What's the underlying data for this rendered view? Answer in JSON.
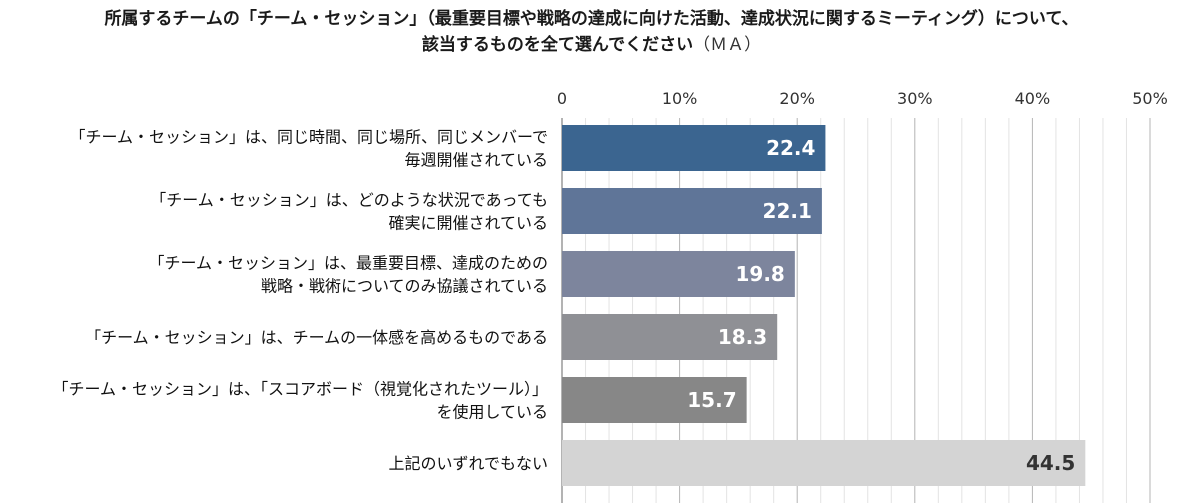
{
  "title": {
    "line1": "所属するチームの「チーム・セッション」（最重要目標や戦略の達成に向けた活動、達成状況に関するミーティング）について、",
    "line2": "該当するものを全て選んでください",
    "line2_suffix": "（ＭＡ）"
  },
  "chart_data": {
    "type": "bar",
    "orientation": "horizontal",
    "categories": [
      [
        "「チーム・セッション」は、同じ時間、同じ場所、同じメンバーで",
        "毎週開催されている"
      ],
      [
        "「チーム・セッション」は、どのような状況であっても",
        "確実に開催されている"
      ],
      [
        "「チーム・セッション」は、最重要目標、達成のための",
        "戦略・戦術についてのみ協議されている"
      ],
      [
        "「チーム・セッション」は、チームの一体感を高めるものである"
      ],
      [
        "「チーム・セッション」は、「スコアボード（視覚化されたツール）」",
        "を使用している"
      ],
      [
        "上記のいずれでもない"
      ]
    ],
    "values": [
      22.4,
      22.1,
      19.8,
      18.3,
      15.7,
      44.5
    ],
    "value_labels": [
      "22.4",
      "22.1",
      "19.8",
      "18.3",
      "15.7",
      "44.5"
    ],
    "xlim": [
      0,
      50
    ],
    "xticks": [
      0,
      10,
      20,
      30,
      40,
      50
    ],
    "xtick_labels": [
      "0",
      "10%",
      "20%",
      "30%",
      "40%",
      "50%"
    ],
    "grid": true,
    "colors": [
      "#3b6590",
      "#5f7598",
      "#7d859d",
      "#8f9095",
      "#878787",
      "#d4d4d4"
    ],
    "label_colors": [
      "#ffffff",
      "#ffffff",
      "#ffffff",
      "#ffffff",
      "#ffffff",
      "#333333"
    ]
  }
}
